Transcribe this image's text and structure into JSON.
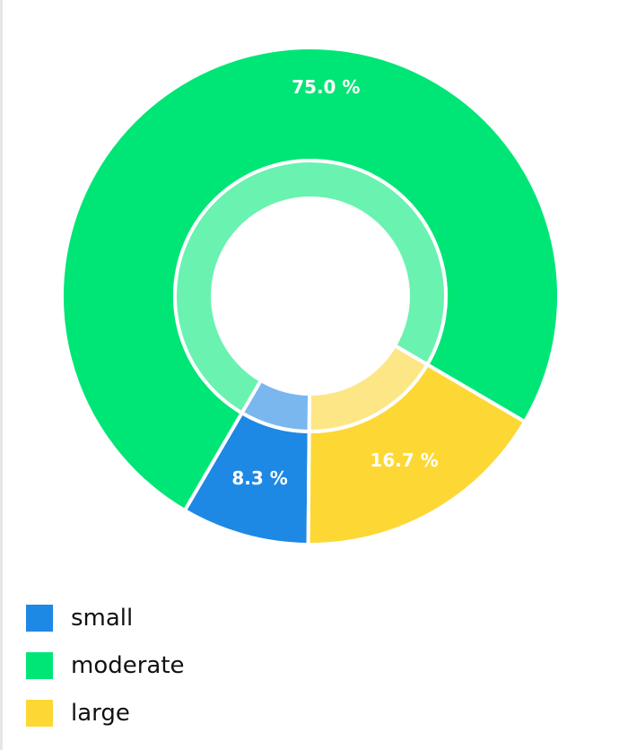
{
  "chart_data": {
    "type": "pie",
    "variant": "donut",
    "title": "",
    "categories": [
      "small",
      "moderate",
      "large"
    ],
    "values": [
      8.3,
      75.0,
      16.7
    ],
    "labels": [
      "8.3 %",
      "75.0 %",
      "16.7 %"
    ],
    "colors": [
      "#1e88e5",
      "#00e676",
      "#fdd835"
    ],
    "inner_ring_colors": [
      "#7ab7ef",
      "#6af2b0",
      "#fde685"
    ],
    "legend_position": "bottom-left",
    "label_units": "%"
  },
  "legend": {
    "items": [
      {
        "label": "small",
        "color": "#1e88e5"
      },
      {
        "label": "moderate",
        "color": "#00e676"
      },
      {
        "label": "large",
        "color": "#fdd835"
      }
    ]
  }
}
